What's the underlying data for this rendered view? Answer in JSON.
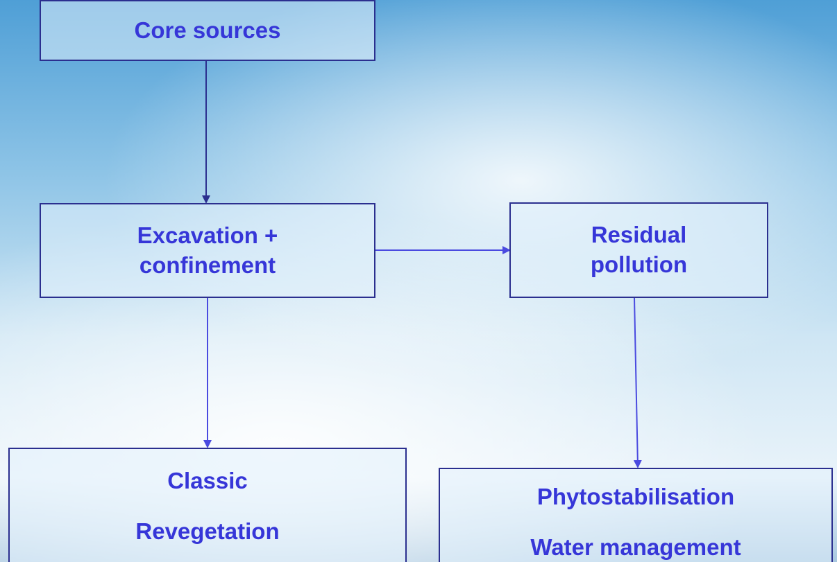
{
  "nodes": [
    {
      "lines": [
        "Core sources"
      ]
    },
    {
      "lines": [
        "Excavation +",
        "confinement"
      ]
    },
    {
      "lines": [
        "Residual",
        "pollution"
      ]
    },
    {
      "lines": [
        "Classic",
        "Revegetation"
      ]
    },
    {
      "lines": [
        "Phytostabilisation",
        "Water management"
      ]
    }
  ]
}
